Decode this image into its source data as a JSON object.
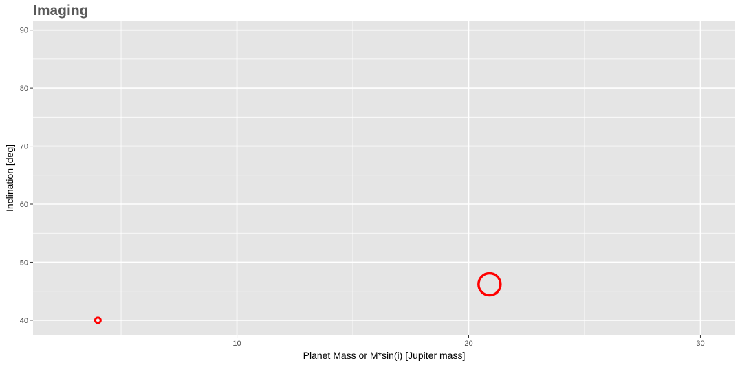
{
  "chart_data": {
    "type": "scatter",
    "title": "Imaging",
    "xlabel": "Planet Mass or M*sin(i) [Jupiter mass]",
    "ylabel": "Inclination [deg]",
    "xlim": [
      1.2,
      31.5
    ],
    "ylim": [
      37.5,
      91.5
    ],
    "x_major_ticks": [
      10,
      20,
      30
    ],
    "x_minor_ticks": [
      5,
      15,
      25
    ],
    "y_major_ticks": [
      40,
      50,
      60,
      70,
      80,
      90
    ],
    "y_minor_ticks": [
      45,
      55,
      65,
      75,
      85
    ],
    "grid": true,
    "background": "#e5e5e5",
    "gridline_color": "#ffffff",
    "marker": "open-circle",
    "marker_color": "#ff0000",
    "points": [
      {
        "x": 4.0,
        "y": 40.0,
        "relative_size": 1
      },
      {
        "x": 20.9,
        "y": 46.2,
        "relative_size": 4
      }
    ]
  }
}
